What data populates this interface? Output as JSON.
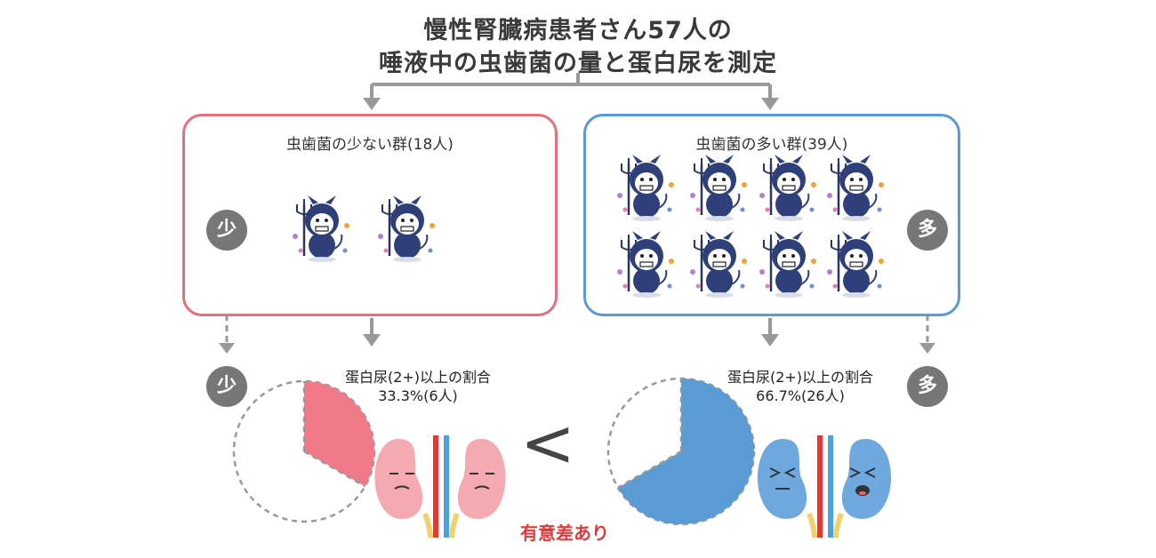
{
  "title": {
    "line1": "慢性腎臓病患者さん57人の",
    "line2": "唾液中の虫歯菌の量と蛋白尿を測定"
  },
  "groups": {
    "few": {
      "title": "虫歯菌の少ない群(18人)",
      "badge": "少",
      "ratio_label": "蛋白尿(2+)以上の割合",
      "ratio_value": "33.3%(6人)",
      "color": "#f07a88"
    },
    "many": {
      "title": "虫歯菌の多い群(39人)",
      "badge": "多",
      "ratio_label": "蛋白尿(2+)以上の割合",
      "ratio_value": "66.7%(26人)",
      "color": "#5b9bd5"
    }
  },
  "comparison": "<",
  "significance": "有意差あり",
  "icons": [
    "devil-bacteria-icon",
    "kidney-sad-icon",
    "kidney-crying-icon",
    "down-arrow-icon"
  ],
  "chart_data": [
    {
      "type": "pie",
      "values": [
        33.3,
        66.7
      ],
      "highlight_color": "#f07a88"
    },
    {
      "type": "pie",
      "values": [
        66.7,
        33.3
      ],
      "highlight_color": "#5b9bd5"
    }
  ]
}
